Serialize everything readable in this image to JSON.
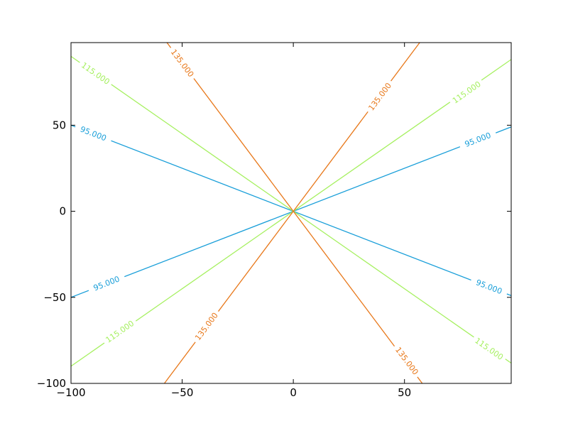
{
  "chart_data": {
    "type": "line",
    "title": "",
    "xlabel": "",
    "ylabel": "",
    "xlim": [
      -100,
      98
    ],
    "ylim": [
      -100,
      98
    ],
    "grid": false,
    "xticks": [
      -100,
      -50,
      0,
      50
    ],
    "xtick_labels": [
      "−100",
      "−50",
      "0",
      "50"
    ],
    "yticks": [
      -100,
      -50,
      0,
      50
    ],
    "ytick_labels": [
      "−100",
      "−50",
      "0",
      "50"
    ],
    "contours": [
      {
        "level_label": "95.000",
        "color": "#1a9fd9",
        "lines": [
          {
            "x": [
              -100,
              98
            ],
            "y": [
              -50,
              49
            ]
          },
          {
            "x": [
              -100,
              98
            ],
            "y": [
              50,
              -49
            ]
          }
        ],
        "labels": [
          {
            "x": -90,
            "y": 45
          },
          {
            "x": 83,
            "y": 41.5
          },
          {
            "x": -84,
            "y": -42
          },
          {
            "x": 88,
            "y": -44
          }
        ]
      },
      {
        "level_label": "115.000",
        "color": "#a6f060",
        "lines": [
          {
            "x": [
              -100,
              98
            ],
            "y": [
              -90,
              88.2
            ]
          },
          {
            "x": [
              -100,
              98
            ],
            "y": [
              90,
              -88.2
            ]
          }
        ],
        "labels": [
          {
            "x": -89,
            "y": 80
          },
          {
            "x": 78,
            "y": 69
          },
          {
            "x": -78,
            "y": -70
          },
          {
            "x": 88,
            "y": -80
          }
        ]
      },
      {
        "level_label": "135.000",
        "color": "#e8781a",
        "lines": [
          {
            "x": [
              -58,
              58
            ],
            "y": [
              -100,
              100
            ]
          },
          {
            "x": [
              -58,
              58
            ],
            "y": [
              100,
              -100
            ]
          }
        ],
        "labels": [
          {
            "x": -50,
            "y": 86
          },
          {
            "x": 39,
            "y": 66.5
          },
          {
            "x": -39,
            "y": -67
          },
          {
            "x": 51,
            "y": -87
          }
        ]
      }
    ]
  }
}
